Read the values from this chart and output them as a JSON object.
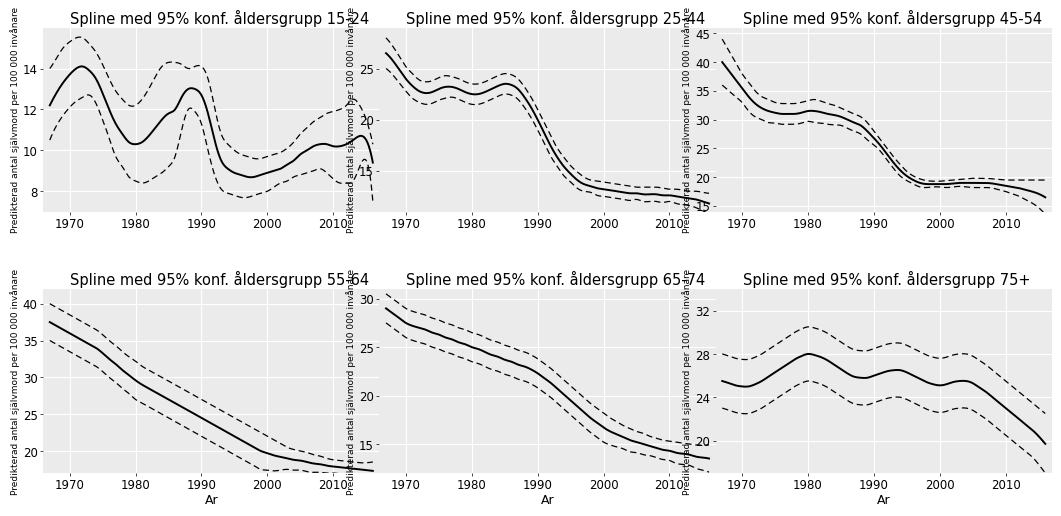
{
  "background_color": "#ebebeb",
  "grid_color": "white",
  "title_fontsize": 10.5,
  "tick_fontsize": 8.5,
  "ylabel": "Predikterad antal självmord per 100 000 invånare",
  "xlabel": "Ar",
  "panels": [
    {
      "title": "Spline med 95% konf. åldersgrupp 15-24",
      "ylim": [
        7,
        16
      ],
      "yticks": [
        8,
        10,
        12,
        14
      ],
      "xticks": [
        1970,
        1980,
        1990,
        2000,
        2010
      ],
      "years": [
        1967,
        1968,
        1969,
        1970,
        1971,
        1972,
        1973,
        1974,
        1975,
        1976,
        1977,
        1978,
        1979,
        1980,
        1981,
        1982,
        1983,
        1984,
        1985,
        1986,
        1987,
        1988,
        1989,
        1990,
        1991,
        1992,
        1993,
        1994,
        1995,
        1996,
        1997,
        1998,
        1999,
        2000,
        2001,
        2002,
        2003,
        2004,
        2005,
        2006,
        2007,
        2008,
        2009,
        2010,
        2011,
        2012,
        2013,
        2014,
        2015,
        2016
      ],
      "fit": [
        12.2,
        12.8,
        13.3,
        13.7,
        14.0,
        14.1,
        13.9,
        13.5,
        12.8,
        12.0,
        11.3,
        10.8,
        10.4,
        10.3,
        10.4,
        10.7,
        11.1,
        11.5,
        11.8,
        12.0,
        12.6,
        13.0,
        13.0,
        12.7,
        11.8,
        10.5,
        9.5,
        9.1,
        8.9,
        8.8,
        8.7,
        8.7,
        8.8,
        8.9,
        9.0,
        9.1,
        9.3,
        9.5,
        9.8,
        10.0,
        10.2,
        10.3,
        10.3,
        10.2,
        10.2,
        10.3,
        10.5,
        10.7,
        10.5,
        9.4
      ],
      "upper": [
        14.0,
        14.5,
        15.0,
        15.3,
        15.5,
        15.5,
        15.2,
        14.8,
        14.2,
        13.5,
        12.9,
        12.5,
        12.2,
        12.2,
        12.5,
        13.0,
        13.6,
        14.1,
        14.3,
        14.3,
        14.2,
        14.0,
        14.1,
        14.1,
        13.5,
        12.1,
        10.8,
        10.3,
        10.0,
        9.8,
        9.7,
        9.6,
        9.6,
        9.7,
        9.8,
        9.9,
        10.1,
        10.4,
        10.8,
        11.1,
        11.4,
        11.6,
        11.8,
        11.9,
        12.0,
        12.2,
        12.5,
        12.2,
        11.5,
        10.3
      ],
      "lower": [
        10.5,
        11.2,
        11.7,
        12.1,
        12.4,
        12.6,
        12.7,
        12.3,
        11.5,
        10.6,
        9.7,
        9.2,
        8.7,
        8.5,
        8.4,
        8.5,
        8.7,
        8.9,
        9.2,
        9.7,
        11.0,
        12.0,
        11.9,
        11.3,
        10.0,
        8.8,
        8.1,
        7.9,
        7.8,
        7.7,
        7.7,
        7.8,
        7.9,
        8.0,
        8.2,
        8.4,
        8.5,
        8.7,
        8.8,
        8.9,
        9.0,
        9.1,
        8.9,
        8.6,
        8.4,
        8.4,
        8.5,
        9.2,
        9.5,
        7.5
      ]
    },
    {
      "title": "Spline med 95% konf. åldersgrupp 25-44",
      "ylim": [
        11,
        29
      ],
      "yticks": [
        15,
        20,
        25
      ],
      "xticks": [
        1970,
        1980,
        1990,
        2000,
        2010
      ],
      "years": [
        1967,
        1968,
        1969,
        1970,
        1971,
        1972,
        1973,
        1974,
        1975,
        1976,
        1977,
        1978,
        1979,
        1980,
        1981,
        1982,
        1983,
        1984,
        1985,
        1986,
        1987,
        1988,
        1989,
        1990,
        1991,
        1992,
        1993,
        1994,
        1995,
        1996,
        1997,
        1998,
        1999,
        2000,
        2001,
        2002,
        2003,
        2004,
        2005,
        2006,
        2007,
        2008,
        2009,
        2010,
        2011,
        2012,
        2013,
        2014,
        2015,
        2016
      ],
      "fit": [
        26.5,
        25.8,
        24.9,
        24.0,
        23.3,
        22.8,
        22.6,
        22.7,
        23.0,
        23.2,
        23.2,
        23.0,
        22.7,
        22.5,
        22.5,
        22.7,
        23.0,
        23.3,
        23.5,
        23.4,
        23.0,
        22.2,
        21.2,
        20.0,
        18.7,
        17.4,
        16.3,
        15.4,
        14.7,
        14.1,
        13.7,
        13.5,
        13.3,
        13.2,
        13.1,
        13.0,
        12.9,
        12.8,
        12.8,
        12.7,
        12.7,
        12.7,
        12.6,
        12.6,
        12.5,
        12.4,
        12.3,
        12.2,
        12.0,
        11.8
      ],
      "upper": [
        28.0,
        27.2,
        26.2,
        25.2,
        24.5,
        23.9,
        23.7,
        23.8,
        24.1,
        24.3,
        24.2,
        24.0,
        23.7,
        23.5,
        23.5,
        23.7,
        24.0,
        24.3,
        24.5,
        24.4,
        24.0,
        23.2,
        22.2,
        21.0,
        19.7,
        18.4,
        17.2,
        16.3,
        15.5,
        14.9,
        14.4,
        14.1,
        14.0,
        13.9,
        13.8,
        13.7,
        13.6,
        13.5,
        13.4,
        13.4,
        13.4,
        13.4,
        13.3,
        13.2,
        13.2,
        13.1,
        13.0,
        13.0,
        12.9,
        12.8
      ],
      "lower": [
        25.0,
        24.4,
        23.6,
        22.8,
        22.1,
        21.7,
        21.5,
        21.6,
        21.9,
        22.1,
        22.2,
        22.0,
        21.7,
        21.5,
        21.5,
        21.7,
        22.0,
        22.3,
        22.5,
        22.4,
        22.0,
        21.2,
        20.2,
        19.0,
        17.7,
        16.4,
        15.4,
        14.5,
        13.9,
        13.3,
        13.0,
        12.9,
        12.6,
        12.5,
        12.4,
        12.3,
        12.2,
        12.1,
        12.2,
        12.0,
        12.0,
        12.0,
        11.9,
        12.0,
        11.8,
        11.7,
        11.6,
        11.4,
        11.1,
        10.8
      ]
    },
    {
      "title": "Spline med 95% konf. åldersgrupp 45-54",
      "ylim": [
        14,
        46
      ],
      "yticks": [
        15,
        20,
        25,
        30,
        35,
        40,
        45
      ],
      "xticks": [
        1970,
        1980,
        1990,
        2000,
        2010
      ],
      "years": [
        1967,
        1968,
        1969,
        1970,
        1971,
        1972,
        1973,
        1974,
        1975,
        1976,
        1977,
        1978,
        1979,
        1980,
        1981,
        1982,
        1983,
        1984,
        1985,
        1986,
        1987,
        1988,
        1989,
        1990,
        1991,
        1992,
        1993,
        1994,
        1995,
        1996,
        1997,
        1998,
        1999,
        2000,
        2001,
        2002,
        2003,
        2004,
        2005,
        2006,
        2007,
        2008,
        2009,
        2010,
        2011,
        2012,
        2013,
        2014,
        2015,
        2016
      ],
      "fit": [
        40.0,
        38.5,
        37.0,
        35.5,
        34.0,
        32.8,
        32.0,
        31.5,
        31.2,
        31.0,
        31.0,
        31.0,
        31.2,
        31.5,
        31.5,
        31.3,
        31.0,
        30.8,
        30.5,
        30.0,
        29.5,
        29.0,
        28.0,
        26.8,
        25.5,
        24.0,
        22.5,
        21.2,
        20.2,
        19.5,
        19.0,
        18.8,
        18.8,
        18.8,
        18.8,
        18.9,
        19.0,
        19.0,
        19.0,
        19.0,
        19.0,
        18.9,
        18.7,
        18.5,
        18.3,
        18.1,
        17.8,
        17.5,
        17.1,
        16.5
      ],
      "upper": [
        44.0,
        42.0,
        40.0,
        38.0,
        36.5,
        35.0,
        34.0,
        33.5,
        33.0,
        32.8,
        32.8,
        32.8,
        33.0,
        33.3,
        33.5,
        33.2,
        32.8,
        32.5,
        32.0,
        31.5,
        31.0,
        30.5,
        29.5,
        28.0,
        26.5,
        25.0,
        23.5,
        22.2,
        21.0,
        20.2,
        19.7,
        19.4,
        19.3,
        19.3,
        19.4,
        19.5,
        19.6,
        19.7,
        19.8,
        19.8,
        19.8,
        19.7,
        19.6,
        19.5,
        19.5,
        19.5,
        19.5,
        19.5,
        19.5,
        19.5
      ],
      "lower": [
        36.0,
        35.0,
        34.0,
        33.0,
        31.5,
        30.5,
        30.0,
        29.5,
        29.4,
        29.2,
        29.2,
        29.2,
        29.4,
        29.7,
        29.5,
        29.4,
        29.2,
        29.1,
        29.0,
        28.5,
        28.0,
        27.5,
        26.5,
        25.6,
        24.5,
        23.0,
        21.5,
        20.2,
        19.4,
        18.8,
        18.3,
        18.2,
        18.3,
        18.3,
        18.2,
        18.3,
        18.4,
        18.3,
        18.2,
        18.2,
        18.2,
        18.1,
        17.8,
        17.5,
        17.1,
        16.7,
        16.1,
        15.5,
        14.7,
        13.5
      ]
    },
    {
      "title": "Spline med 95% konf. åldersgrupp 55-64",
      "ylim": [
        17,
        42
      ],
      "yticks": [
        20,
        25,
        30,
        35,
        40
      ],
      "xticks": [
        1970,
        1980,
        1990,
        2000,
        2010
      ],
      "years": [
        1967,
        1968,
        1969,
        1970,
        1971,
        1972,
        1973,
        1974,
        1975,
        1976,
        1977,
        1978,
        1979,
        1980,
        1981,
        1982,
        1983,
        1984,
        1985,
        1986,
        1987,
        1988,
        1989,
        1990,
        1991,
        1992,
        1993,
        1994,
        1995,
        1996,
        1997,
        1998,
        1999,
        2000,
        2001,
        2002,
        2003,
        2004,
        2005,
        2006,
        2007,
        2008,
        2009,
        2010,
        2011,
        2012,
        2013,
        2014,
        2015,
        2016
      ],
      "fit": [
        37.5,
        37.0,
        36.5,
        36.0,
        35.5,
        35.0,
        34.5,
        34.0,
        33.3,
        32.5,
        31.8,
        31.0,
        30.3,
        29.6,
        29.0,
        28.5,
        28.0,
        27.5,
        27.0,
        26.5,
        26.0,
        25.5,
        25.0,
        24.5,
        24.0,
        23.5,
        23.0,
        22.5,
        22.0,
        21.5,
        21.0,
        20.5,
        20.0,
        19.7,
        19.4,
        19.2,
        19.0,
        18.8,
        18.7,
        18.5,
        18.3,
        18.2,
        18.0,
        17.9,
        17.8,
        17.7,
        17.6,
        17.5,
        17.4,
        17.3
      ],
      "upper": [
        40.0,
        39.5,
        39.0,
        38.5,
        38.0,
        37.5,
        37.0,
        36.5,
        35.8,
        35.0,
        34.3,
        33.5,
        32.8,
        32.2,
        31.5,
        31.0,
        30.5,
        30.0,
        29.5,
        29.0,
        28.5,
        28.0,
        27.5,
        27.0,
        26.5,
        26.0,
        25.5,
        25.0,
        24.5,
        24.0,
        23.5,
        23.0,
        22.5,
        22.0,
        21.5,
        21.0,
        20.5,
        20.2,
        20.0,
        19.8,
        19.5,
        19.3,
        19.0,
        18.8,
        18.7,
        18.6,
        18.5,
        18.4,
        18.4,
        18.5
      ],
      "lower": [
        35.0,
        34.5,
        34.0,
        33.5,
        33.0,
        32.5,
        32.0,
        31.5,
        30.8,
        30.0,
        29.3,
        28.5,
        27.8,
        27.0,
        26.5,
        26.0,
        25.5,
        25.0,
        24.5,
        24.0,
        23.5,
        23.0,
        22.5,
        22.0,
        21.5,
        21.0,
        20.5,
        20.0,
        19.5,
        19.0,
        18.5,
        18.0,
        17.5,
        17.4,
        17.3,
        17.4,
        17.5,
        17.4,
        17.4,
        17.2,
        17.1,
        17.1,
        17.0,
        17.0,
        16.9,
        16.8,
        16.7,
        16.6,
        16.4,
        16.1
      ]
    },
    {
      "title": "Spline med 95% konf. åldersgrupp 65-74",
      "ylim": [
        12,
        31
      ],
      "yticks": [
        15,
        20,
        25,
        30
      ],
      "xticks": [
        1970,
        1980,
        1990,
        2000,
        2010
      ],
      "years": [
        1967,
        1968,
        1969,
        1970,
        1971,
        1972,
        1973,
        1974,
        1975,
        1976,
        1977,
        1978,
        1979,
        1980,
        1981,
        1982,
        1983,
        1984,
        1985,
        1986,
        1987,
        1988,
        1989,
        1990,
        1991,
        1992,
        1993,
        1994,
        1995,
        1996,
        1997,
        1998,
        1999,
        2000,
        2001,
        2002,
        2003,
        2004,
        2005,
        2006,
        2007,
        2008,
        2009,
        2010,
        2011,
        2012,
        2013,
        2014,
        2015,
        2016
      ],
      "fit": [
        29.0,
        28.5,
        28.0,
        27.5,
        27.2,
        27.0,
        26.8,
        26.5,
        26.3,
        26.0,
        25.8,
        25.5,
        25.3,
        25.0,
        24.8,
        24.5,
        24.2,
        24.0,
        23.7,
        23.5,
        23.2,
        23.0,
        22.7,
        22.3,
        21.8,
        21.3,
        20.7,
        20.1,
        19.5,
        18.9,
        18.3,
        17.7,
        17.2,
        16.7,
        16.3,
        16.0,
        15.7,
        15.4,
        15.2,
        15.0,
        14.8,
        14.6,
        14.4,
        14.3,
        14.1,
        14.0,
        13.9,
        13.7,
        13.6,
        13.5
      ],
      "upper": [
        30.5,
        30.0,
        29.5,
        29.0,
        28.7,
        28.5,
        28.3,
        28.0,
        27.8,
        27.5,
        27.3,
        27.0,
        26.8,
        26.5,
        26.3,
        26.0,
        25.7,
        25.5,
        25.2,
        25.0,
        24.7,
        24.5,
        24.2,
        23.8,
        23.3,
        22.8,
        22.2,
        21.6,
        21.0,
        20.4,
        19.8,
        19.2,
        18.7,
        18.2,
        17.7,
        17.3,
        16.9,
        16.6,
        16.3,
        16.1,
        15.8,
        15.6,
        15.4,
        15.3,
        15.2,
        15.1,
        15.0,
        14.9,
        14.9,
        14.9
      ],
      "lower": [
        27.5,
        27.0,
        26.5,
        26.0,
        25.7,
        25.5,
        25.3,
        25.0,
        24.8,
        24.5,
        24.3,
        24.0,
        23.8,
        23.5,
        23.3,
        23.0,
        22.7,
        22.5,
        22.2,
        22.0,
        21.7,
        21.5,
        21.2,
        20.8,
        20.3,
        19.8,
        19.2,
        18.6,
        18.0,
        17.4,
        16.8,
        16.2,
        15.7,
        15.2,
        14.9,
        14.7,
        14.5,
        14.2,
        14.1,
        13.9,
        13.8,
        13.6,
        13.4,
        13.3,
        13.0,
        12.9,
        12.8,
        12.5,
        12.3,
        12.1
      ]
    },
    {
      "title": "Spline med 95% konf. åldersgrupp 75+",
      "ylim": [
        17,
        34
      ],
      "yticks": [
        20,
        24,
        28,
        32
      ],
      "xticks": [
        1970,
        1980,
        1990,
        2000,
        2010
      ],
      "years": [
        1967,
        1968,
        1969,
        1970,
        1971,
        1972,
        1973,
        1974,
        1975,
        1976,
        1977,
        1978,
        1979,
        1980,
        1981,
        1982,
        1983,
        1984,
        1985,
        1986,
        1987,
        1988,
        1989,
        1990,
        1991,
        1992,
        1993,
        1994,
        1995,
        1996,
        1997,
        1998,
        1999,
        2000,
        2001,
        2002,
        2003,
        2004,
        2005,
        2006,
        2007,
        2008,
        2009,
        2010,
        2011,
        2012,
        2013,
        2014,
        2015,
        2016
      ],
      "fit": [
        25.5,
        25.3,
        25.1,
        25.0,
        25.0,
        25.2,
        25.5,
        25.9,
        26.3,
        26.7,
        27.1,
        27.5,
        27.8,
        28.0,
        27.9,
        27.7,
        27.4,
        27.0,
        26.6,
        26.2,
        25.9,
        25.8,
        25.8,
        26.0,
        26.2,
        26.4,
        26.5,
        26.5,
        26.3,
        26.0,
        25.7,
        25.4,
        25.2,
        25.1,
        25.2,
        25.4,
        25.5,
        25.5,
        25.3,
        24.9,
        24.5,
        24.0,
        23.5,
        23.0,
        22.5,
        22.0,
        21.5,
        21.0,
        20.4,
        19.7
      ],
      "upper": [
        28.0,
        27.8,
        27.6,
        27.5,
        27.5,
        27.7,
        28.0,
        28.4,
        28.8,
        29.2,
        29.6,
        30.0,
        30.3,
        30.5,
        30.4,
        30.2,
        29.9,
        29.5,
        29.1,
        28.7,
        28.4,
        28.3,
        28.3,
        28.5,
        28.7,
        28.9,
        29.0,
        29.0,
        28.8,
        28.5,
        28.2,
        27.9,
        27.7,
        27.6,
        27.7,
        27.9,
        28.0,
        28.0,
        27.8,
        27.4,
        27.0,
        26.5,
        26.0,
        25.5,
        25.0,
        24.5,
        24.0,
        23.5,
        23.0,
        22.5
      ],
      "lower": [
        23.0,
        22.8,
        22.6,
        22.5,
        22.5,
        22.7,
        23.0,
        23.4,
        23.8,
        24.2,
        24.6,
        25.0,
        25.3,
        25.5,
        25.4,
        25.2,
        24.9,
        24.5,
        24.1,
        23.7,
        23.4,
        23.3,
        23.3,
        23.5,
        23.7,
        23.9,
        24.0,
        24.0,
        23.8,
        23.5,
        23.2,
        22.9,
        22.7,
        22.6,
        22.7,
        22.9,
        23.0,
        23.0,
        22.8,
        22.4,
        22.0,
        21.5,
        21.0,
        20.5,
        20.0,
        19.5,
        19.0,
        18.5,
        17.8,
        17.0
      ]
    }
  ]
}
